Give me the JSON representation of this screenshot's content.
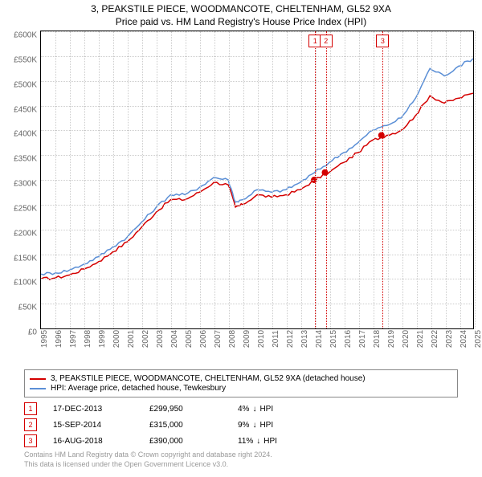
{
  "title": "3, PEAKSTILE PIECE, WOODMANCOTE, CHELTENHAM, GL52 9XA",
  "subtitle": "Price paid vs. HM Land Registry's House Price Index (HPI)",
  "chart": {
    "type": "line",
    "xlim": [
      1995,
      2025
    ],
    "ylim": [
      0,
      600000
    ],
    "ytick_step": 50000,
    "y_tick_labels": [
      "£0",
      "£50K",
      "£100K",
      "£150K",
      "£200K",
      "£250K",
      "£300K",
      "£350K",
      "£400K",
      "£450K",
      "£500K",
      "£550K",
      "£600K"
    ],
    "x_tick_labels": [
      "1995",
      "1996",
      "1997",
      "1998",
      "1999",
      "2000",
      "2001",
      "2002",
      "2003",
      "2004",
      "2005",
      "2006",
      "2007",
      "2008",
      "2009",
      "2010",
      "2011",
      "2012",
      "2013",
      "2014",
      "2015",
      "2016",
      "2017",
      "2018",
      "2019",
      "2020",
      "2021",
      "2022",
      "2023",
      "2024",
      "2025"
    ],
    "grid_color": "#cccccc",
    "background_color": "#ffffff",
    "series": [
      {
        "name": "property",
        "label": "3, PEAKSTILE PIECE, WOODMANCOTE, CHELTENHAM, GL52 9XA (detached house)",
        "color": "#d40000",
        "width": 1.5,
        "x": [
          1995,
          1996,
          1997,
          1998,
          1999,
          2000,
          2001,
          2002,
          2003,
          2004,
          2005,
          2006,
          2007,
          2008,
          2008.5,
          2009,
          2010,
          2011,
          2012,
          2013,
          2014,
          2015,
          2016,
          2017,
          2018,
          2019,
          2020,
          2021,
          2022,
          2023,
          2024,
          2025
        ],
        "y": [
          100000,
          102000,
          108000,
          120000,
          135000,
          155000,
          175000,
          205000,
          235000,
          260000,
          260000,
          275000,
          295000,
          290000,
          245000,
          250000,
          270000,
          265000,
          270000,
          280000,
          300000,
          315000,
          335000,
          355000,
          380000,
          390000,
          400000,
          430000,
          470000,
          455000,
          465000,
          475000
        ]
      },
      {
        "name": "hpi",
        "label": "HPI: Average price, detached house, Tewkesbury",
        "color": "#5b8fd6",
        "width": 1.5,
        "x": [
          1995,
          1996,
          1997,
          1998,
          1999,
          2000,
          2001,
          2002,
          2003,
          2004,
          2005,
          2006,
          2007,
          2008,
          2008.5,
          2009,
          2010,
          2011,
          2012,
          2013,
          2014,
          2015,
          2016,
          2017,
          2018,
          2019,
          2020,
          2021,
          2022,
          2023,
          2024,
          2025
        ],
        "y": [
          110000,
          112000,
          118000,
          130000,
          145000,
          165000,
          185000,
          215000,
          245000,
          270000,
          270000,
          285000,
          305000,
          300000,
          255000,
          260000,
          280000,
          275000,
          280000,
          295000,
          315000,
          335000,
          355000,
          375000,
          400000,
          410000,
          425000,
          465000,
          525000,
          510000,
          530000,
          545000
        ]
      }
    ],
    "markers": [
      {
        "n": "1",
        "x": 2013.96,
        "y": 299950,
        "color": "#d40000"
      },
      {
        "n": "2",
        "x": 2014.71,
        "y": 315000,
        "color": "#d40000"
      },
      {
        "n": "3",
        "x": 2018.63,
        "y": 390000,
        "color": "#d40000"
      }
    ]
  },
  "transactions": [
    {
      "n": "1",
      "date": "17-DEC-2013",
      "price": "£299,950",
      "diff": "4%",
      "dir": "↓",
      "ref": "HPI",
      "color": "#d40000"
    },
    {
      "n": "2",
      "date": "15-SEP-2014",
      "price": "£315,000",
      "diff": "9%",
      "dir": "↓",
      "ref": "HPI",
      "color": "#d40000"
    },
    {
      "n": "3",
      "date": "16-AUG-2018",
      "price": "£390,000",
      "diff": "11%",
      "dir": "↓",
      "ref": "HPI",
      "color": "#d40000"
    }
  ],
  "attribution": {
    "line1": "Contains HM Land Registry data © Crown copyright and database right 2024.",
    "line2": "This data is licensed under the Open Government Licence v3.0."
  }
}
